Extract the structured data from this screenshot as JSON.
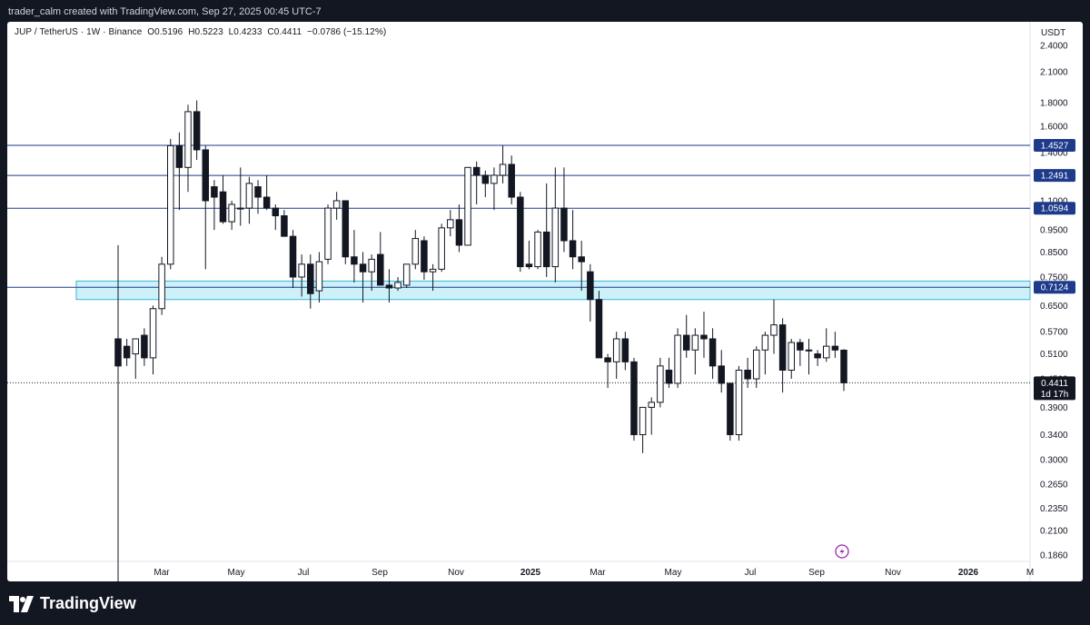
{
  "header": {
    "attribution": "trader_calm created with TradingView.com, Sep 27, 2025 00:45 UTC-7"
  },
  "legend": {
    "symbol": "JUP / TetherUS · 1W · Binance",
    "open": "O0.5196",
    "high": "H0.5223",
    "low": "L0.4233",
    "close": "C0.4411",
    "change": "−0.0786 (−15.12%)"
  },
  "footer": {
    "brand": "TradingView"
  },
  "chart_data": {
    "type": "candlestick",
    "symbol": "JUP / TetherUS",
    "interval": "1W",
    "exchange": "Binance",
    "currency": "USDT",
    "y_scale": "log",
    "ylim": [
      0.18,
      2.7
    ],
    "y_ticks": [
      "2.4000",
      "2.1000",
      "1.8000",
      "1.6000",
      "1.4000",
      "1.2500",
      "1.1000",
      "0.9500",
      "0.8500",
      "0.7500",
      "0.6500",
      "0.5700",
      "0.5100",
      "0.4500",
      "0.3900",
      "0.3400",
      "0.3000",
      "0.2650",
      "0.2350",
      "0.2100",
      "0.1860"
    ],
    "x_ticks": [
      "Mar",
      "May",
      "Jul",
      "Sep",
      "Nov",
      "2025",
      "Mar",
      "May",
      "Jul",
      "Sep",
      "Nov",
      "2026",
      "M"
    ],
    "horizontal_levels": [
      {
        "value": 1.4527,
        "label": "1.4527",
        "color": "#1e3a8a"
      },
      {
        "value": 1.2491,
        "label": "1.2491",
        "color": "#1e3a8a"
      },
      {
        "value": 1.0594,
        "label": "1.0594",
        "color": "#1e3a8a"
      },
      {
        "value": 0.7124,
        "label": "0.7124",
        "color": "#1e3a8a"
      }
    ],
    "zone": {
      "low": 0.67,
      "high": 0.735,
      "color": "#cdf1f8",
      "border": "#3bb7d8"
    },
    "last_price": {
      "value": 0.4411,
      "label": "0.4411",
      "countdown": "1d 17h"
    },
    "candles": [
      {
        "o": 0.55,
        "h": 0.88,
        "l": 0.12,
        "c": 0.48
      },
      {
        "o": 0.53,
        "h": 0.55,
        "l": 0.48,
        "c": 0.5
      },
      {
        "o": 0.51,
        "h": 0.55,
        "l": 0.45,
        "c": 0.55
      },
      {
        "o": 0.56,
        "h": 0.58,
        "l": 0.48,
        "c": 0.5
      },
      {
        "o": 0.5,
        "h": 0.65,
        "l": 0.46,
        "c": 0.64
      },
      {
        "o": 0.64,
        "h": 0.83,
        "l": 0.62,
        "c": 0.8
      },
      {
        "o": 0.8,
        "h": 1.5,
        "l": 0.78,
        "c": 1.45
      },
      {
        "o": 1.45,
        "h": 1.55,
        "l": 1.05,
        "c": 1.3
      },
      {
        "o": 1.3,
        "h": 1.78,
        "l": 1.15,
        "c": 1.72
      },
      {
        "o": 1.72,
        "h": 1.82,
        "l": 1.35,
        "c": 1.42
      },
      {
        "o": 1.42,
        "h": 1.45,
        "l": 0.78,
        "c": 1.1
      },
      {
        "o": 1.18,
        "h": 1.22,
        "l": 0.95,
        "c": 1.12
      },
      {
        "o": 1.15,
        "h": 1.25,
        "l": 0.98,
        "c": 0.99
      },
      {
        "o": 0.99,
        "h": 1.1,
        "l": 0.95,
        "c": 1.08
      },
      {
        "o": 1.06,
        "h": 1.3,
        "l": 0.97,
        "c": 1.06
      },
      {
        "o": 1.06,
        "h": 1.24,
        "l": 0.98,
        "c": 1.2
      },
      {
        "o": 1.18,
        "h": 1.22,
        "l": 1.03,
        "c": 1.12
      },
      {
        "o": 1.12,
        "h": 1.25,
        "l": 1.05,
        "c": 1.06
      },
      {
        "o": 1.06,
        "h": 1.08,
        "l": 0.95,
        "c": 1.02
      },
      {
        "o": 1.02,
        "h": 1.05,
        "l": 0.92,
        "c": 0.92
      },
      {
        "o": 0.92,
        "h": 0.95,
        "l": 0.71,
        "c": 0.75
      },
      {
        "o": 0.75,
        "h": 0.84,
        "l": 0.68,
        "c": 0.8
      },
      {
        "o": 0.8,
        "h": 0.84,
        "l": 0.64,
        "c": 0.69
      },
      {
        "o": 0.7,
        "h": 0.85,
        "l": 0.66,
        "c": 0.81
      },
      {
        "o": 0.82,
        "h": 1.08,
        "l": 0.8,
        "c": 1.06
      },
      {
        "o": 1.06,
        "h": 1.15,
        "l": 1.0,
        "c": 1.1
      },
      {
        "o": 1.1,
        "h": 1.1,
        "l": 0.8,
        "c": 0.83
      },
      {
        "o": 0.83,
        "h": 0.95,
        "l": 0.73,
        "c": 0.8
      },
      {
        "o": 0.8,
        "h": 0.85,
        "l": 0.66,
        "c": 0.77
      },
      {
        "o": 0.77,
        "h": 0.84,
        "l": 0.7,
        "c": 0.82
      },
      {
        "o": 0.84,
        "h": 0.94,
        "l": 0.73,
        "c": 0.72
      },
      {
        "o": 0.72,
        "h": 0.78,
        "l": 0.66,
        "c": 0.71
      },
      {
        "o": 0.71,
        "h": 0.75,
        "l": 0.7,
        "c": 0.73
      },
      {
        "o": 0.72,
        "h": 0.8,
        "l": 0.71,
        "c": 0.8
      },
      {
        "o": 0.8,
        "h": 0.95,
        "l": 0.78,
        "c": 0.91
      },
      {
        "o": 0.9,
        "h": 0.92,
        "l": 0.74,
        "c": 0.77
      },
      {
        "o": 0.77,
        "h": 0.8,
        "l": 0.7,
        "c": 0.78
      },
      {
        "o": 0.78,
        "h": 0.98,
        "l": 0.77,
        "c": 0.96
      },
      {
        "o": 0.96,
        "h": 1.05,
        "l": 0.92,
        "c": 1.0
      },
      {
        "o": 1.0,
        "h": 1.08,
        "l": 0.85,
        "c": 0.88
      },
      {
        "o": 0.88,
        "h": 1.3,
        "l": 0.88,
        "c": 1.3
      },
      {
        "o": 1.3,
        "h": 1.34,
        "l": 1.08,
        "c": 1.25
      },
      {
        "o": 1.25,
        "h": 1.28,
        "l": 1.12,
        "c": 1.2
      },
      {
        "o": 1.2,
        "h": 1.3,
        "l": 1.05,
        "c": 1.25
      },
      {
        "o": 1.25,
        "h": 1.45,
        "l": 1.2,
        "c": 1.32
      },
      {
        "o": 1.32,
        "h": 1.38,
        "l": 1.08,
        "c": 1.12
      },
      {
        "o": 1.12,
        "h": 1.15,
        "l": 0.77,
        "c": 0.79
      },
      {
        "o": 0.8,
        "h": 0.9,
        "l": 0.78,
        "c": 0.79
      },
      {
        "o": 0.79,
        "h": 0.95,
        "l": 0.78,
        "c": 0.94
      },
      {
        "o": 0.94,
        "h": 1.2,
        "l": 0.75,
        "c": 0.79
      },
      {
        "o": 0.79,
        "h": 1.3,
        "l": 0.73,
        "c": 1.06
      },
      {
        "o": 1.06,
        "h": 1.3,
        "l": 0.85,
        "c": 0.9
      },
      {
        "o": 0.9,
        "h": 1.05,
        "l": 0.78,
        "c": 0.83
      },
      {
        "o": 0.83,
        "h": 0.9,
        "l": 0.7,
        "c": 0.81
      },
      {
        "o": 0.77,
        "h": 0.8,
        "l": 0.6,
        "c": 0.67
      },
      {
        "o": 0.67,
        "h": 0.7,
        "l": 0.5,
        "c": 0.5
      },
      {
        "o": 0.5,
        "h": 0.51,
        "l": 0.43,
        "c": 0.49
      },
      {
        "o": 0.49,
        "h": 0.57,
        "l": 0.45,
        "c": 0.55
      },
      {
        "o": 0.55,
        "h": 0.57,
        "l": 0.47,
        "c": 0.49
      },
      {
        "o": 0.49,
        "h": 0.5,
        "l": 0.33,
        "c": 0.34
      },
      {
        "o": 0.34,
        "h": 0.39,
        "l": 0.31,
        "c": 0.39
      },
      {
        "o": 0.39,
        "h": 0.41,
        "l": 0.34,
        "c": 0.4
      },
      {
        "o": 0.4,
        "h": 0.5,
        "l": 0.39,
        "c": 0.48
      },
      {
        "o": 0.47,
        "h": 0.5,
        "l": 0.43,
        "c": 0.44
      },
      {
        "o": 0.44,
        "h": 0.58,
        "l": 0.43,
        "c": 0.56
      },
      {
        "o": 0.56,
        "h": 0.62,
        "l": 0.5,
        "c": 0.52
      },
      {
        "o": 0.52,
        "h": 0.58,
        "l": 0.46,
        "c": 0.56
      },
      {
        "o": 0.56,
        "h": 0.63,
        "l": 0.5,
        "c": 0.55
      },
      {
        "o": 0.55,
        "h": 0.58,
        "l": 0.45,
        "c": 0.48
      },
      {
        "o": 0.48,
        "h": 0.52,
        "l": 0.42,
        "c": 0.44
      },
      {
        "o": 0.44,
        "h": 0.44,
        "l": 0.33,
        "c": 0.34
      },
      {
        "o": 0.34,
        "h": 0.48,
        "l": 0.33,
        "c": 0.47
      },
      {
        "o": 0.47,
        "h": 0.5,
        "l": 0.43,
        "c": 0.45
      },
      {
        "o": 0.45,
        "h": 0.53,
        "l": 0.43,
        "c": 0.52
      },
      {
        "o": 0.52,
        "h": 0.57,
        "l": 0.46,
        "c": 0.56
      },
      {
        "o": 0.56,
        "h": 0.67,
        "l": 0.51,
        "c": 0.59
      },
      {
        "o": 0.59,
        "h": 0.61,
        "l": 0.42,
        "c": 0.47
      },
      {
        "o": 0.47,
        "h": 0.55,
        "l": 0.45,
        "c": 0.54
      },
      {
        "o": 0.54,
        "h": 0.55,
        "l": 0.48,
        "c": 0.52
      },
      {
        "o": 0.52,
        "h": 0.55,
        "l": 0.46,
        "c": 0.52
      },
      {
        "o": 0.51,
        "h": 0.52,
        "l": 0.48,
        "c": 0.5
      },
      {
        "o": 0.5,
        "h": 0.58,
        "l": 0.49,
        "c": 0.53
      },
      {
        "o": 0.53,
        "h": 0.57,
        "l": 0.5,
        "c": 0.52
      },
      {
        "o": 0.5196,
        "h": 0.5223,
        "l": 0.4233,
        "c": 0.4411
      }
    ]
  }
}
